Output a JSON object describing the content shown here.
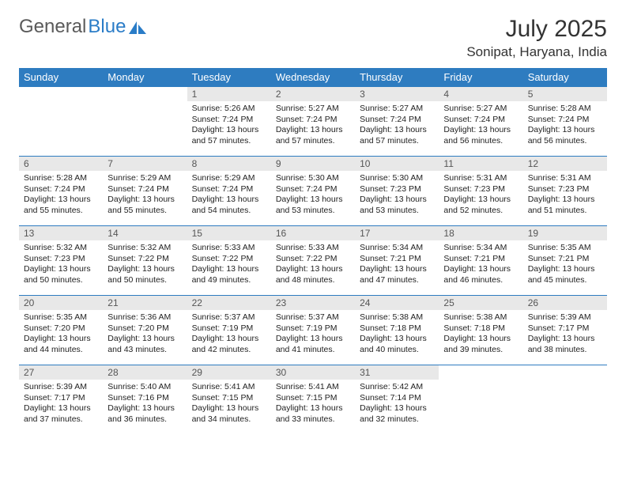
{
  "logo": {
    "text1": "General",
    "text2": "Blue"
  },
  "title": "July 2025",
  "location": "Sonipat, Haryana, India",
  "colors": {
    "header_bg": "#2e7cc0",
    "header_text": "#ffffff",
    "daynum_bg": "#e8e8e8",
    "border": "#2e7cc0",
    "logo_gray": "#5a5a5a",
    "logo_blue": "#2a7cc7"
  },
  "day_headers": [
    "Sunday",
    "Monday",
    "Tuesday",
    "Wednesday",
    "Thursday",
    "Friday",
    "Saturday"
  ],
  "weeks": [
    [
      null,
      null,
      {
        "n": "1",
        "sr": "5:26 AM",
        "ss": "7:24 PM",
        "dl": "13 hours and 57 minutes."
      },
      {
        "n": "2",
        "sr": "5:27 AM",
        "ss": "7:24 PM",
        "dl": "13 hours and 57 minutes."
      },
      {
        "n": "3",
        "sr": "5:27 AM",
        "ss": "7:24 PM",
        "dl": "13 hours and 57 minutes."
      },
      {
        "n": "4",
        "sr": "5:27 AM",
        "ss": "7:24 PM",
        "dl": "13 hours and 56 minutes."
      },
      {
        "n": "5",
        "sr": "5:28 AM",
        "ss": "7:24 PM",
        "dl": "13 hours and 56 minutes."
      }
    ],
    [
      {
        "n": "6",
        "sr": "5:28 AM",
        "ss": "7:24 PM",
        "dl": "13 hours and 55 minutes."
      },
      {
        "n": "7",
        "sr": "5:29 AM",
        "ss": "7:24 PM",
        "dl": "13 hours and 55 minutes."
      },
      {
        "n": "8",
        "sr": "5:29 AM",
        "ss": "7:24 PM",
        "dl": "13 hours and 54 minutes."
      },
      {
        "n": "9",
        "sr": "5:30 AM",
        "ss": "7:24 PM",
        "dl": "13 hours and 53 minutes."
      },
      {
        "n": "10",
        "sr": "5:30 AM",
        "ss": "7:23 PM",
        "dl": "13 hours and 53 minutes."
      },
      {
        "n": "11",
        "sr": "5:31 AM",
        "ss": "7:23 PM",
        "dl": "13 hours and 52 minutes."
      },
      {
        "n": "12",
        "sr": "5:31 AM",
        "ss": "7:23 PM",
        "dl": "13 hours and 51 minutes."
      }
    ],
    [
      {
        "n": "13",
        "sr": "5:32 AM",
        "ss": "7:23 PM",
        "dl": "13 hours and 50 minutes."
      },
      {
        "n": "14",
        "sr": "5:32 AM",
        "ss": "7:22 PM",
        "dl": "13 hours and 50 minutes."
      },
      {
        "n": "15",
        "sr": "5:33 AM",
        "ss": "7:22 PM",
        "dl": "13 hours and 49 minutes."
      },
      {
        "n": "16",
        "sr": "5:33 AM",
        "ss": "7:22 PM",
        "dl": "13 hours and 48 minutes."
      },
      {
        "n": "17",
        "sr": "5:34 AM",
        "ss": "7:21 PM",
        "dl": "13 hours and 47 minutes."
      },
      {
        "n": "18",
        "sr": "5:34 AM",
        "ss": "7:21 PM",
        "dl": "13 hours and 46 minutes."
      },
      {
        "n": "19",
        "sr": "5:35 AM",
        "ss": "7:21 PM",
        "dl": "13 hours and 45 minutes."
      }
    ],
    [
      {
        "n": "20",
        "sr": "5:35 AM",
        "ss": "7:20 PM",
        "dl": "13 hours and 44 minutes."
      },
      {
        "n": "21",
        "sr": "5:36 AM",
        "ss": "7:20 PM",
        "dl": "13 hours and 43 minutes."
      },
      {
        "n": "22",
        "sr": "5:37 AM",
        "ss": "7:19 PM",
        "dl": "13 hours and 42 minutes."
      },
      {
        "n": "23",
        "sr": "5:37 AM",
        "ss": "7:19 PM",
        "dl": "13 hours and 41 minutes."
      },
      {
        "n": "24",
        "sr": "5:38 AM",
        "ss": "7:18 PM",
        "dl": "13 hours and 40 minutes."
      },
      {
        "n": "25",
        "sr": "5:38 AM",
        "ss": "7:18 PM",
        "dl": "13 hours and 39 minutes."
      },
      {
        "n": "26",
        "sr": "5:39 AM",
        "ss": "7:17 PM",
        "dl": "13 hours and 38 minutes."
      }
    ],
    [
      {
        "n": "27",
        "sr": "5:39 AM",
        "ss": "7:17 PM",
        "dl": "13 hours and 37 minutes."
      },
      {
        "n": "28",
        "sr": "5:40 AM",
        "ss": "7:16 PM",
        "dl": "13 hours and 36 minutes."
      },
      {
        "n": "29",
        "sr": "5:41 AM",
        "ss": "7:15 PM",
        "dl": "13 hours and 34 minutes."
      },
      {
        "n": "30",
        "sr": "5:41 AM",
        "ss": "7:15 PM",
        "dl": "13 hours and 33 minutes."
      },
      {
        "n": "31",
        "sr": "5:42 AM",
        "ss": "7:14 PM",
        "dl": "13 hours and 32 minutes."
      },
      null,
      null
    ]
  ],
  "labels": {
    "sunrise": "Sunrise:",
    "sunset": "Sunset:",
    "daylight": "Daylight:"
  }
}
